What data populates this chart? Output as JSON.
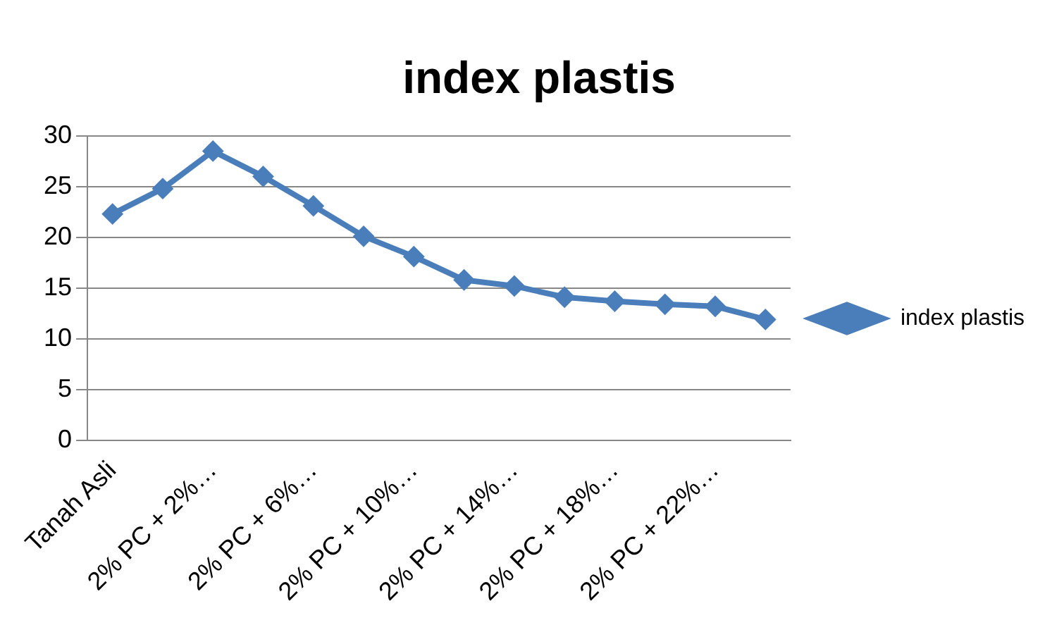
{
  "chart_data": {
    "type": "line",
    "title": "index plastis",
    "categories": [
      "Tanah Asli",
      null,
      "2% PC + 2%…",
      null,
      "2% PC + 6%…",
      null,
      "2% PC + 10%…",
      null,
      "2% PC + 14%…",
      null,
      "2% PC + 18%…",
      null,
      "2% PC + 22%…",
      null
    ],
    "series": [
      {
        "name": "index plastis",
        "color": "#4a7ebb",
        "values": [
          22.3,
          24.8,
          28.5,
          26.0,
          23.1,
          20.1,
          18.1,
          15.8,
          15.2,
          14.1,
          13.7,
          13.4,
          13.2,
          11.9
        ]
      }
    ],
    "ylim": [
      0,
      30
    ],
    "yticks": [
      0,
      5,
      10,
      15,
      20,
      25,
      30
    ],
    "grid": "y",
    "legend": "right",
    "marker": "diamond",
    "line_style": "solid"
  }
}
